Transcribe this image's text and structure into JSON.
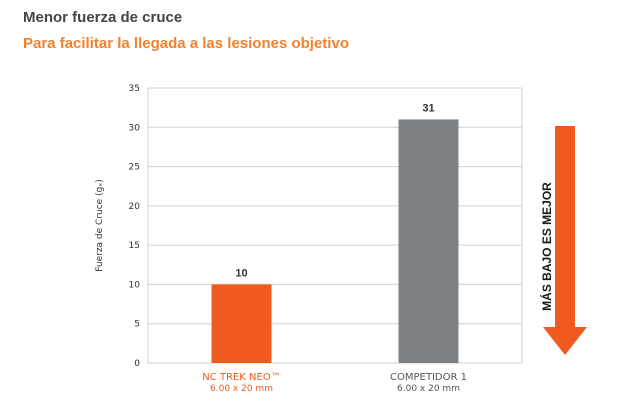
{
  "header": {
    "title": "Menor fuerza de cruce",
    "subtitle": "Para facilitar la llegada a las lesiones objetivo"
  },
  "colors": {
    "title": "#444444",
    "subtitle": "#f0822d",
    "bar_primary": "#f05a1e",
    "bar_secondary": "#7e8183",
    "arrow": "#f05a1e",
    "grid": "#d0d0d0"
  },
  "chart_data": {
    "type": "bar",
    "title": "",
    "xlabel": "",
    "ylabel": "Fuerza de Cruce (gₓ)",
    "ylim": [
      0,
      35
    ],
    "yticks": [
      0,
      5,
      10,
      15,
      20,
      25,
      30,
      35
    ],
    "grid": true,
    "categories": [
      {
        "name": "NC TREK NEO™",
        "size": "6.00 x 20 mm",
        "value": 10,
        "label": "10",
        "color": "#f05a1e",
        "name_color": "#f05a1e"
      },
      {
        "name": "COMPETIDOR 1",
        "size": "6.00 x 20 mm",
        "value": 31,
        "label": "31",
        "color": "#7e8183",
        "name_color": "#555555"
      }
    ],
    "annotation": {
      "text": "MÁS BAJO ES MEJOR",
      "direction": "down"
    }
  }
}
